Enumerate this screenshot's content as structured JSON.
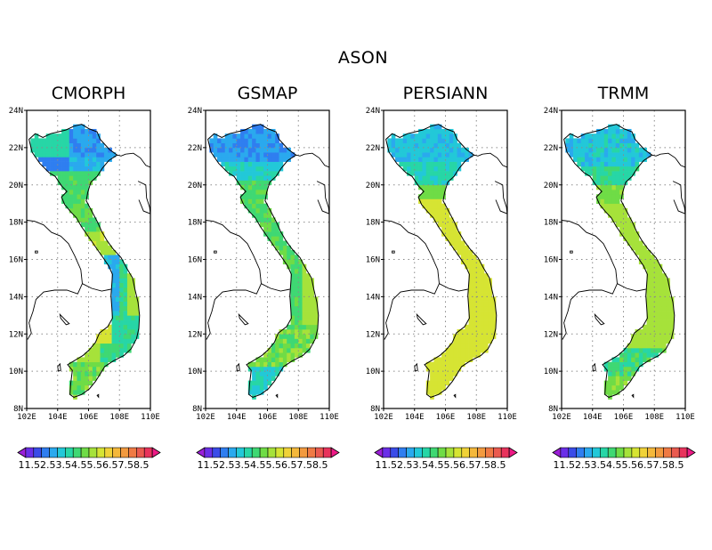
{
  "title": "ASON",
  "panels": [
    {
      "name": "CMORPH",
      "scheme": "cmorph"
    },
    {
      "name": "GSMAP",
      "scheme": "gsmap"
    },
    {
      "name": "PERSIANN",
      "scheme": "persiann"
    },
    {
      "name": "TRMM",
      "scheme": "trmm"
    }
  ],
  "lat_ticks": [
    "8N",
    "10N",
    "12N",
    "14N",
    "16N",
    "18N",
    "20N",
    "22N",
    "24N"
  ],
  "lon_ticks": [
    "102E",
    "104E",
    "106E",
    "108E",
    "110E"
  ],
  "colorbar": {
    "colors": [
      "#9b1fd8",
      "#6a2fe8",
      "#3a4ce8",
      "#2f7ef0",
      "#2aa9ee",
      "#22c8d8",
      "#27d6a6",
      "#3fd873",
      "#6fdc46",
      "#a6e23a",
      "#d6e433",
      "#f0d238",
      "#f4b83b",
      "#f29a3f",
      "#ef7a44",
      "#ea5a4f",
      "#e8335c",
      "#ee1a86"
    ],
    "labels": "11.52.53.54.55.56.57.58.5"
  }
}
